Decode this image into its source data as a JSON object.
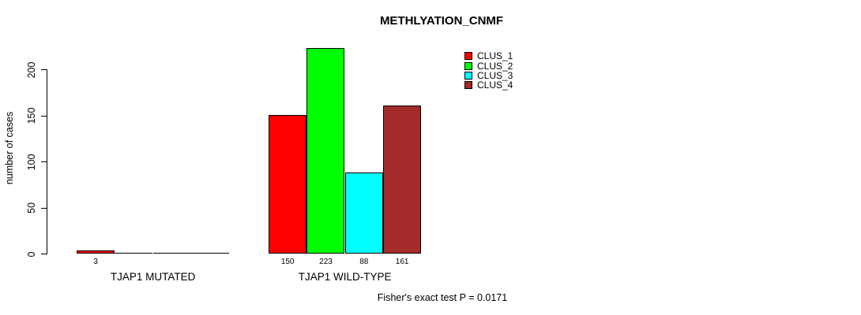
{
  "chart_data": {
    "type": "bar",
    "title": "METHLYATION_CNMF",
    "ylabel": "number of cases",
    "xlabel": "",
    "yticks": [
      0,
      50,
      100,
      150,
      200
    ],
    "ylim": [
      0,
      200
    ],
    "grid": false,
    "legend_position": "top-right",
    "categories": [
      "TJAP1 MUTATED",
      "TJAP1 WILD-TYPE"
    ],
    "series": [
      {
        "name": "CLUS_1",
        "color": "#ff0000",
        "values": [
          3,
          150
        ]
      },
      {
        "name": "CLUS_2",
        "color": "#00ff00",
        "values": [
          0,
          223
        ]
      },
      {
        "name": "CLUS_3",
        "color": "#00ffff",
        "values": [
          0,
          88
        ]
      },
      {
        "name": "CLUS_4",
        "color": "#a52a2a",
        "values": [
          0,
          161
        ]
      }
    ],
    "bar_value_labels": {
      "TJAP1 MUTATED": [
        "3",
        "",
        "",
        ""
      ],
      "TJAP1 WILD-TYPE": [
        "150",
        "223",
        "88",
        "161"
      ]
    },
    "footer": "Fisher's exact test P = 0.0171"
  }
}
